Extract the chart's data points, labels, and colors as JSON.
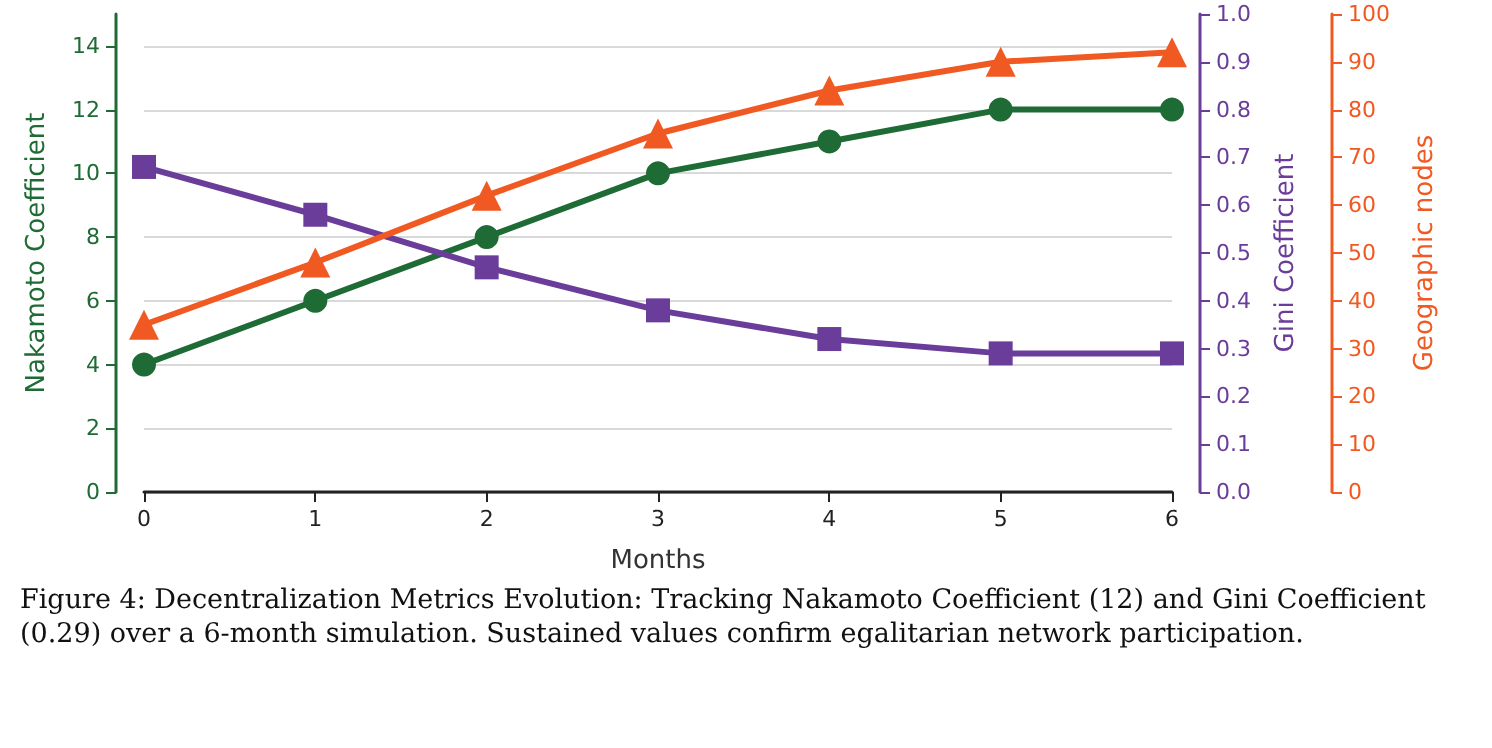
{
  "chart_data": {
    "type": "line",
    "xlabel": "Months",
    "ylabel": "Nakamoto Coefficient",
    "y2label": "Gini Coefficient",
    "y3label": "Geographic nodes",
    "x": [
      0,
      1,
      2,
      3,
      4,
      5,
      6
    ],
    "xlim": [
      0,
      6
    ],
    "xticks": [
      0,
      1,
      2,
      3,
      4,
      5,
      6
    ],
    "ylim": [
      0,
      15
    ],
    "yticks": [
      0,
      2,
      4,
      6,
      8,
      10,
      12,
      14
    ],
    "y2lim": [
      0,
      1
    ],
    "y2ticks": [
      {
        "value": 0,
        "label": "0.0"
      },
      0.1,
      0.2,
      0.3,
      0.4,
      0.5,
      0.6,
      0.7,
      0.8,
      0.9,
      {
        "value": 1,
        "label": "1.0"
      }
    ],
    "y3lim": [
      0,
      100
    ],
    "y3ticks": [
      0,
      10,
      20,
      30,
      40,
      50,
      60,
      70,
      80,
      90,
      100
    ],
    "grid": "y",
    "line_style": "solid",
    "series": [
      {
        "color": "#1e6b35",
        "marker": "circle",
        "values": [
          4,
          6,
          8,
          10,
          11,
          12,
          12
        ]
      },
      {
        "color": "#6a3d9a",
        "marker": "square",
        "axis": "y2",
        "values": [
          0.68,
          0.58,
          0.47,
          0.38,
          0.32,
          0.29,
          0.29
        ]
      },
      {
        "color": "#f05a22",
        "marker": "triangle",
        "axis": "y3",
        "values": [
          35,
          48,
          62,
          75,
          84,
          90,
          92
        ]
      }
    ],
    "annotations": [
      "Figure 4: Decentralization Metrics Evolution:  Tracking Nakamoto Coefficient (12) and Gini Coefficient (0.29) over a 6-month simulation.  Sustained values confirm egalitarian network participation."
    ]
  }
}
